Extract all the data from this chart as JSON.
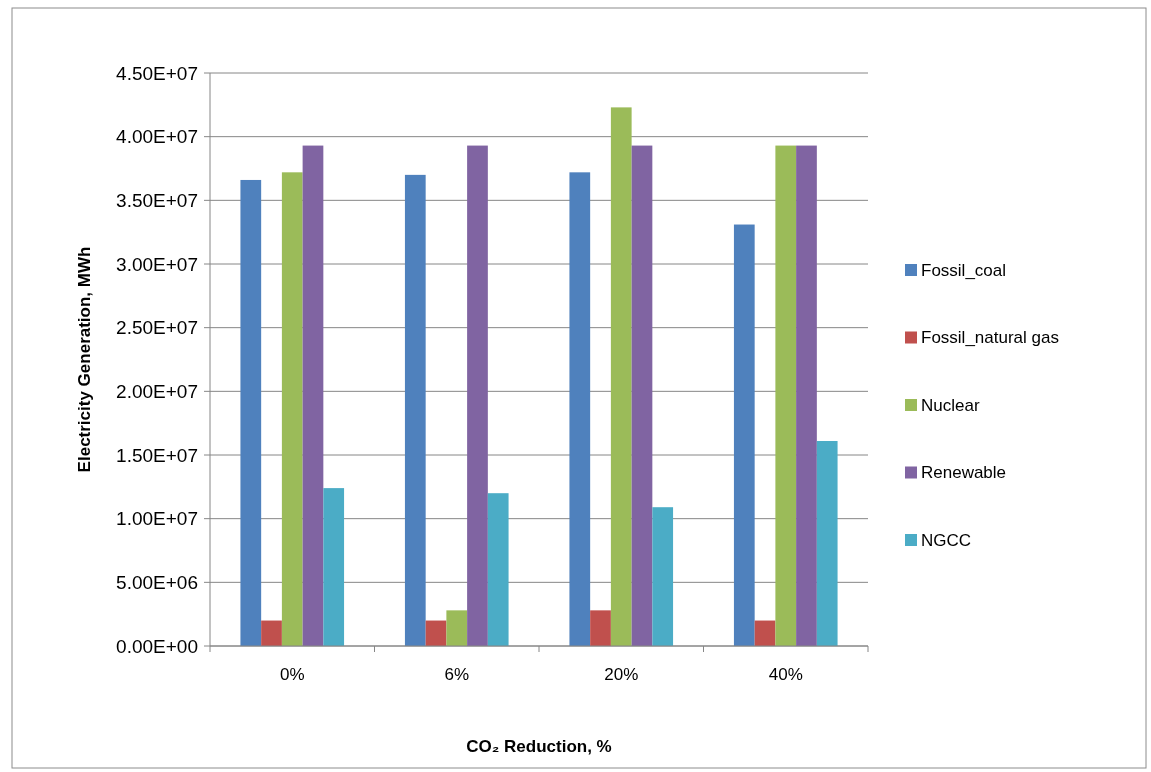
{
  "chart_data": {
    "type": "bar",
    "xlabel": "CO₂ Reduction, %",
    "ylabel": "Electricity Generation, MWh",
    "categories": [
      "0%",
      "6%",
      "20%",
      "40%"
    ],
    "series": [
      {
        "name": "Fossil_coal",
        "color": "#4f81bd",
        "values": [
          36600000,
          37000000,
          37200000,
          33100000
        ]
      },
      {
        "name": "Fossil_natural gas",
        "color": "#c0504d",
        "values": [
          2000000,
          2000000,
          2800000,
          2000000
        ]
      },
      {
        "name": "Nuclear",
        "color": "#9bbb59",
        "values": [
          37200000,
          2800000,
          42300000,
          39300000
        ]
      },
      {
        "name": "Renewable",
        "color": "#8064a2",
        "values": [
          39300000,
          39300000,
          39300000,
          39300000
        ]
      },
      {
        "name": "NGCC",
        "color": "#4bacc6",
        "values": [
          12400000,
          12000000,
          10900000,
          16100000
        ]
      }
    ],
    "ylim": [
      0,
      45000000
    ],
    "yticks": [
      {
        "value": 0,
        "label": "0.00E+00"
      },
      {
        "value": 5000000,
        "label": "5.00E+06"
      },
      {
        "value": 10000000,
        "label": "1.00E+07"
      },
      {
        "value": 15000000,
        "label": "1.50E+07"
      },
      {
        "value": 20000000,
        "label": "2.00E+07"
      },
      {
        "value": 25000000,
        "label": "2.50E+07"
      },
      {
        "value": 30000000,
        "label": "3.00E+07"
      },
      {
        "value": 35000000,
        "label": "3.50E+07"
      },
      {
        "value": 40000000,
        "label": "4.00E+07"
      },
      {
        "value": 45000000,
        "label": "4.50E+07"
      }
    ],
    "grid": "y",
    "legend": "right"
  }
}
